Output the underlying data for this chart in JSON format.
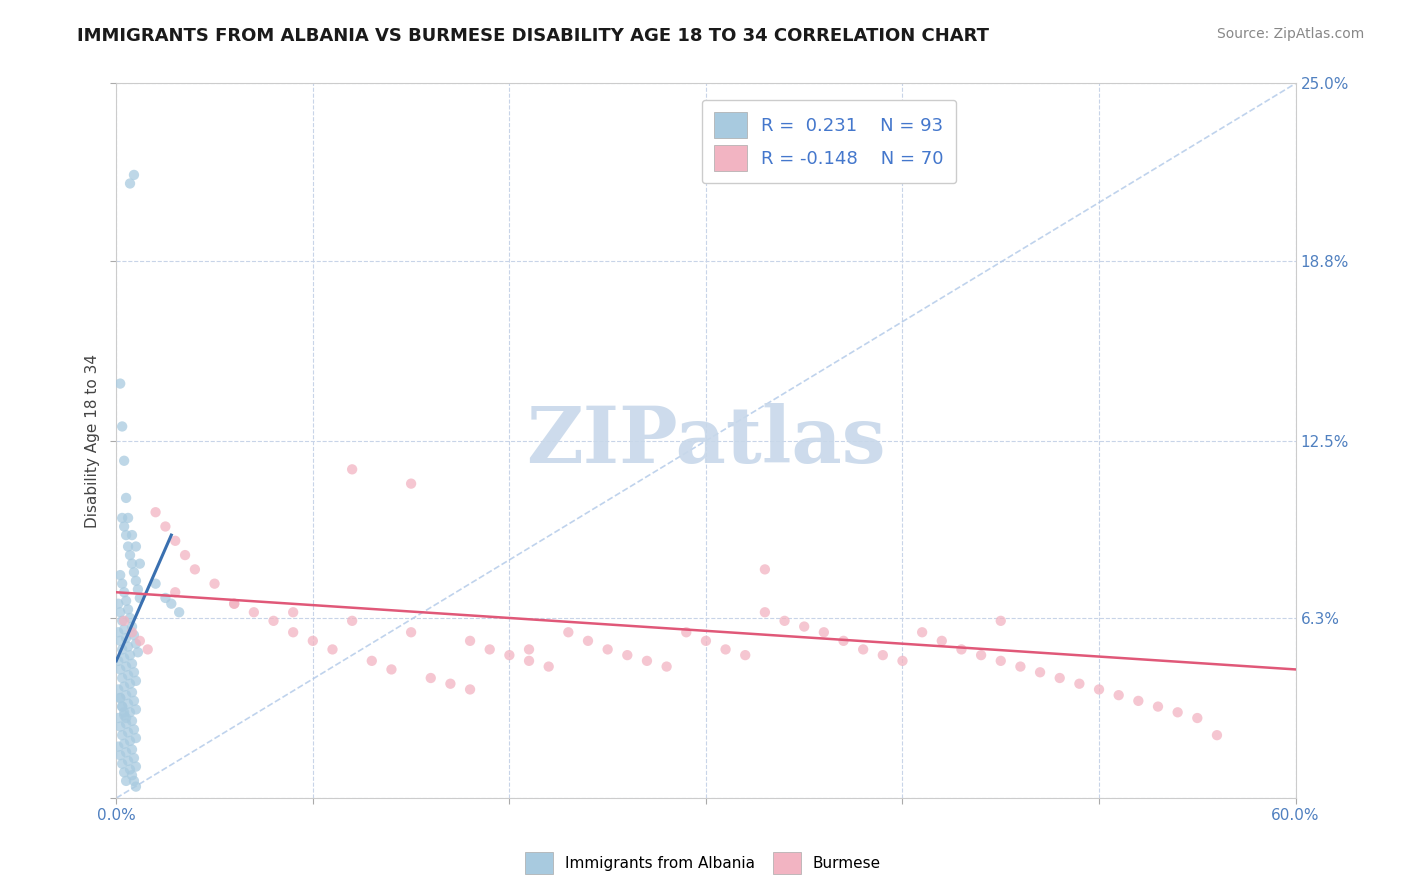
{
  "title": "IMMIGRANTS FROM ALBANIA VS BURMESE DISABILITY AGE 18 TO 34 CORRELATION CHART",
  "source": "Source: ZipAtlas.com",
  "ylabel": "Disability Age 18 to 34",
  "xlim": [
    0.0,
    0.6
  ],
  "ylim": [
    0.0,
    0.25
  ],
  "xticks": [
    0.0,
    0.1,
    0.2,
    0.3,
    0.4,
    0.5,
    0.6
  ],
  "xticklabels": [
    "0.0%",
    "",
    "",
    "",
    "",
    "",
    "60.0%"
  ],
  "yticks": [
    0.0,
    0.063,
    0.125,
    0.188,
    0.25
  ],
  "yticklabels_right": [
    "",
    "6.3%",
    "12.5%",
    "18.8%",
    "25.0%"
  ],
  "blue_color": "#A8CADF",
  "pink_color": "#F2B4C2",
  "trend_blue": "#3A70B0",
  "trend_pink": "#E05878",
  "ref_line_color": "#B0C8E8",
  "watermark": "ZIPatlas",
  "watermark_color": "#C8D8EA",
  "grid_color": "#C8D4E8",
  "title_fontsize": 13,
  "axis_label_fontsize": 11,
  "tick_fontsize": 11,
  "legend_fontsize": 13,
  "source_fontsize": 10,
  "blue_scatter_x": [
    0.007,
    0.009,
    0.002,
    0.003,
    0.004,
    0.005,
    0.006,
    0.008,
    0.01,
    0.012,
    0.003,
    0.004,
    0.005,
    0.006,
    0.007,
    0.008,
    0.009,
    0.01,
    0.011,
    0.012,
    0.002,
    0.003,
    0.004,
    0.005,
    0.006,
    0.007,
    0.008,
    0.009,
    0.01,
    0.011,
    0.001,
    0.002,
    0.003,
    0.004,
    0.005,
    0.006,
    0.007,
    0.008,
    0.009,
    0.01,
    0.001,
    0.002,
    0.003,
    0.004,
    0.005,
    0.006,
    0.007,
    0.008,
    0.009,
    0.01,
    0.001,
    0.002,
    0.003,
    0.004,
    0.005,
    0.006,
    0.007,
    0.008,
    0.009,
    0.01,
    0.001,
    0.002,
    0.003,
    0.004,
    0.005,
    0.006,
    0.007,
    0.008,
    0.009,
    0.01,
    0.001,
    0.002,
    0.003,
    0.004,
    0.005,
    0.006,
    0.007,
    0.008,
    0.009,
    0.01,
    0.001,
    0.002,
    0.003,
    0.004,
    0.005,
    0.02,
    0.025,
    0.028,
    0.032,
    0.002,
    0.003,
    0.004,
    0.005
  ],
  "blue_scatter_y": [
    0.215,
    0.218,
    0.145,
    0.13,
    0.118,
    0.105,
    0.098,
    0.092,
    0.088,
    0.082,
    0.098,
    0.095,
    0.092,
    0.088,
    0.085,
    0.082,
    0.079,
    0.076,
    0.073,
    0.07,
    0.078,
    0.075,
    0.072,
    0.069,
    0.066,
    0.063,
    0.06,
    0.057,
    0.054,
    0.051,
    0.068,
    0.065,
    0.062,
    0.059,
    0.056,
    0.053,
    0.05,
    0.047,
    0.044,
    0.041,
    0.058,
    0.055,
    0.052,
    0.049,
    0.046,
    0.043,
    0.04,
    0.037,
    0.034,
    0.031,
    0.048,
    0.045,
    0.042,
    0.039,
    0.036,
    0.033,
    0.03,
    0.027,
    0.024,
    0.021,
    0.038,
    0.035,
    0.032,
    0.029,
    0.026,
    0.023,
    0.02,
    0.017,
    0.014,
    0.011,
    0.028,
    0.025,
    0.022,
    0.019,
    0.016,
    0.013,
    0.01,
    0.008,
    0.006,
    0.004,
    0.018,
    0.015,
    0.012,
    0.009,
    0.006,
    0.075,
    0.07,
    0.068,
    0.065,
    0.035,
    0.032,
    0.03,
    0.028
  ],
  "pink_scatter_x": [
    0.004,
    0.008,
    0.012,
    0.016,
    0.02,
    0.025,
    0.03,
    0.035,
    0.04,
    0.05,
    0.06,
    0.07,
    0.08,
    0.09,
    0.1,
    0.11,
    0.12,
    0.13,
    0.14,
    0.15,
    0.16,
    0.17,
    0.18,
    0.19,
    0.2,
    0.21,
    0.22,
    0.23,
    0.24,
    0.25,
    0.26,
    0.27,
    0.28,
    0.29,
    0.3,
    0.31,
    0.32,
    0.33,
    0.34,
    0.35,
    0.36,
    0.37,
    0.38,
    0.39,
    0.4,
    0.41,
    0.42,
    0.43,
    0.44,
    0.45,
    0.46,
    0.47,
    0.48,
    0.49,
    0.5,
    0.51,
    0.52,
    0.53,
    0.54,
    0.55,
    0.56,
    0.03,
    0.06,
    0.09,
    0.12,
    0.15,
    0.18,
    0.21,
    0.33,
    0.45
  ],
  "pink_scatter_y": [
    0.062,
    0.058,
    0.055,
    0.052,
    0.1,
    0.095,
    0.09,
    0.085,
    0.08,
    0.075,
    0.068,
    0.065,
    0.062,
    0.058,
    0.055,
    0.052,
    0.115,
    0.048,
    0.045,
    0.11,
    0.042,
    0.04,
    0.038,
    0.052,
    0.05,
    0.048,
    0.046,
    0.058,
    0.055,
    0.052,
    0.05,
    0.048,
    0.046,
    0.058,
    0.055,
    0.052,
    0.05,
    0.065,
    0.062,
    0.06,
    0.058,
    0.055,
    0.052,
    0.05,
    0.048,
    0.058,
    0.055,
    0.052,
    0.05,
    0.048,
    0.046,
    0.044,
    0.042,
    0.04,
    0.038,
    0.036,
    0.034,
    0.032,
    0.03,
    0.028,
    0.022,
    0.072,
    0.068,
    0.065,
    0.062,
    0.058,
    0.055,
    0.052,
    0.08,
    0.062
  ],
  "blue_trend_x": [
    0.0,
    0.028
  ],
  "blue_trend_y": [
    0.048,
    0.092
  ],
  "pink_trend_x": [
    0.0,
    0.6
  ],
  "pink_trend_y": [
    0.072,
    0.045
  ],
  "ref_line_x": [
    0.0,
    0.6
  ],
  "ref_line_y": [
    0.0,
    0.25
  ]
}
